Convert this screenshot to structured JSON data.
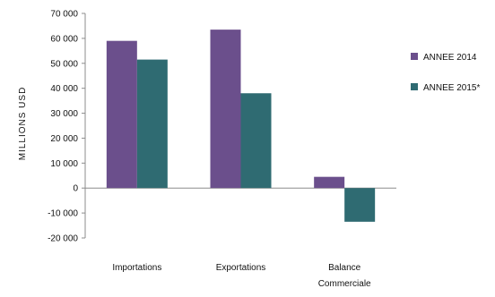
{
  "chart_data": {
    "type": "bar",
    "ylabel": "MILLIONS USD",
    "categories": [
      "Importations",
      "Exportations",
      "Balance Commerciale"
    ],
    "category_lines": [
      [
        "Importations"
      ],
      [
        "Exportations"
      ],
      [
        "Balance",
        "Commerciale"
      ]
    ],
    "series": [
      {
        "name": "ANNEE 2014",
        "color": "#6b4f8c",
        "values": [
          59000,
          63500,
          4500
        ]
      },
      {
        "name": "ANNEE 2015*",
        "color": "#2f6b72",
        "values": [
          51500,
          38000,
          -13500
        ]
      }
    ],
    "ylim": [
      -20000,
      70000
    ],
    "yticks": [
      70000,
      60000,
      50000,
      40000,
      30000,
      20000,
      10000,
      0,
      -10000,
      -20000
    ],
    "ytick_labels": [
      "70 000",
      "60 000",
      "50 000",
      "40 000",
      "30 000",
      "20 000",
      "10 000",
      "0",
      "-10 000",
      "-20 000"
    ],
    "grid": false,
    "legend_position": "right"
  }
}
